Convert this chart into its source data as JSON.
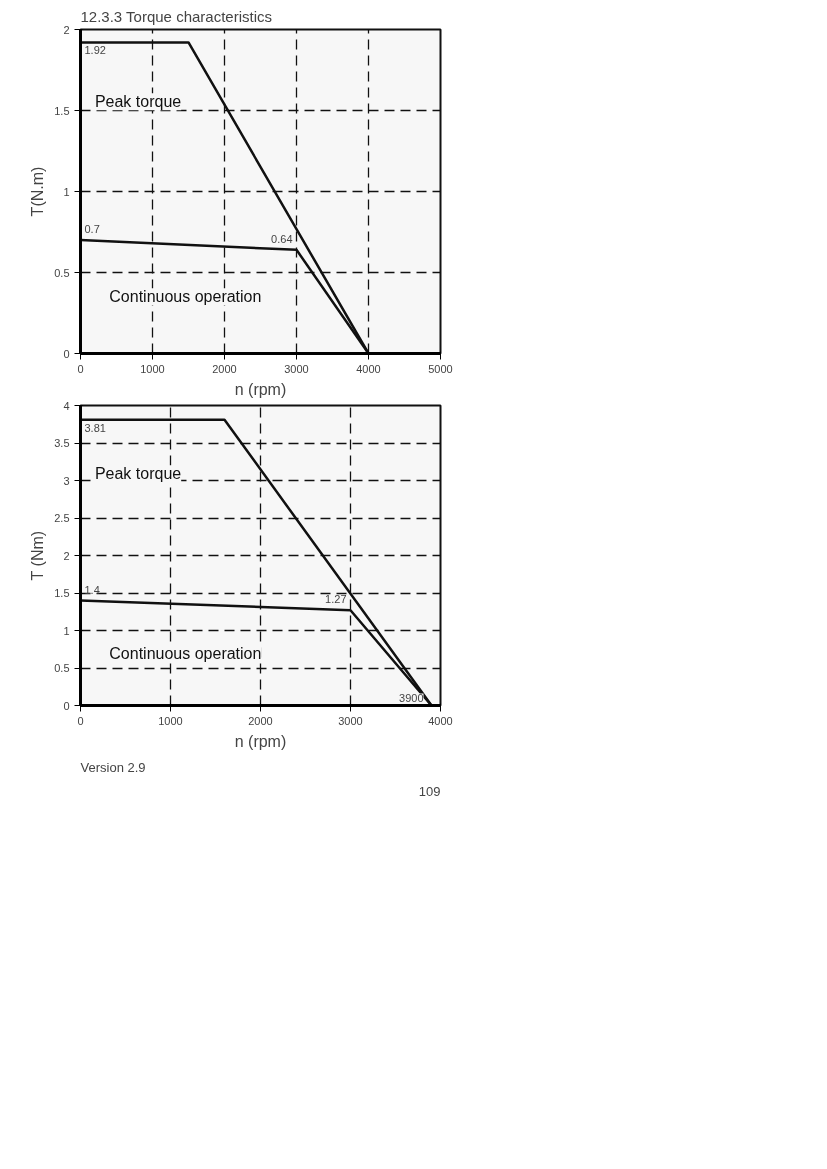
{
  "chart_data": [
    {
      "type": "line",
      "title": "12.3.3 Torque characteristics",
      "xlabel": "n (rpm)",
      "ylabel": "T(N.m)",
      "xlim": [
        0,
        5000
      ],
      "ylim": [
        0,
        2
      ],
      "xticks": [
        0,
        1000,
        2000,
        3000,
        4000,
        5000
      ],
      "yticks": [
        0,
        0.5,
        1,
        1.5,
        2
      ],
      "grid": true,
      "line_style": "solid",
      "marker": "none",
      "series": [
        {
          "name": "Peak torque",
          "color": "#111111",
          "x": [
            0,
            1500,
            4000
          ],
          "values": [
            1.92,
            1.92,
            0
          ],
          "value_labels": [
            "1.92",
            null,
            null
          ]
        },
        {
          "name": "Continuous operation",
          "color": "#111111",
          "x": [
            0,
            3000,
            4000
          ],
          "values": [
            0.7,
            0.64,
            0
          ],
          "value_labels": [
            "0.7",
            "0.64",
            null
          ]
        }
      ]
    },
    {
      "type": "line",
      "xlabel": "n (rpm)",
      "ylabel": "T (Nm)",
      "xlim": [
        0,
        4000
      ],
      "ylim": [
        0,
        4
      ],
      "xticks": [
        0,
        1000,
        2000,
        3000,
        4000
      ],
      "yticks": [
        0,
        0.5,
        1,
        1.5,
        2,
        2.5,
        3,
        3.5,
        4
      ],
      "grid": true,
      "line_style": "solid",
      "marker": "none",
      "series": [
        {
          "name": "Peak torque",
          "color": "#111111",
          "x": [
            0,
            1600,
            3900
          ],
          "values": [
            3.81,
            3.81,
            0
          ],
          "value_labels": [
            "3.81",
            null,
            null
          ]
        },
        {
          "name": "Continuous operation",
          "color": "#111111",
          "x": [
            0,
            3000,
            3900
          ],
          "values": [
            1.4,
            1.27,
            0
          ],
          "value_labels": [
            "1.4",
            "1.27",
            null
          ]
        }
      ],
      "annotations": [
        {
          "text": "3900",
          "x": 3900,
          "y": 0
        },
        "Version 2.9",
        "109"
      ]
    }
  ]
}
